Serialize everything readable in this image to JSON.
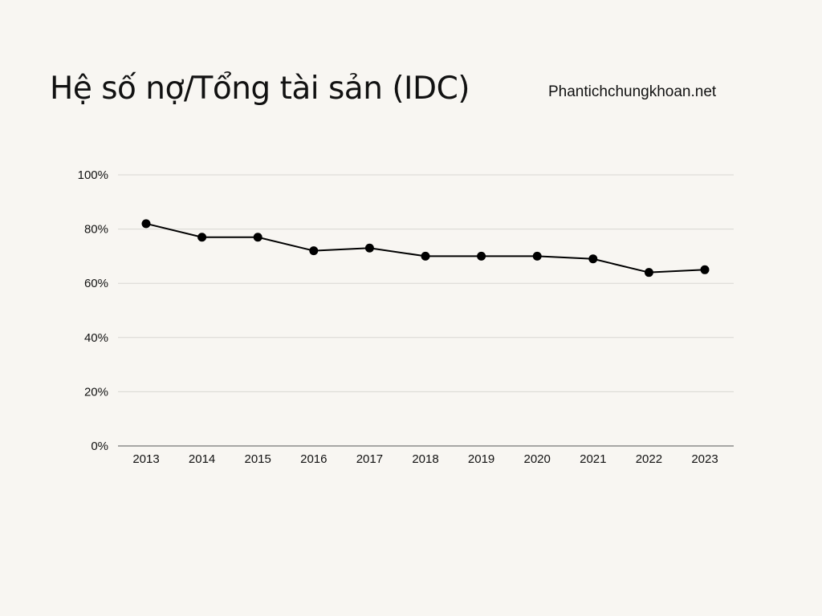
{
  "header": {
    "title": "Hệ số nợ/Tổng tài sản (IDC)",
    "source": "Phantichchungkhoan.net"
  },
  "colors": {
    "background": "#f8f6f2",
    "line": "#000000",
    "grid": "#d9d7d2",
    "axis": "#555555"
  },
  "chart_data": {
    "type": "line",
    "title": "Hệ số nợ/Tổng tài sản (IDC)",
    "xlabel": "",
    "ylabel": "",
    "categories": [
      "2013",
      "2014",
      "2015",
      "2016",
      "2017",
      "2018",
      "2019",
      "2020",
      "2021",
      "2022",
      "2023"
    ],
    "series": [
      {
        "values": [
          0.82,
          0.77,
          0.77,
          0.72,
          0.73,
          0.7,
          0.7,
          0.7,
          0.69,
          0.64,
          0.65
        ]
      }
    ],
    "ylim": [
      0,
      1
    ],
    "yticks": [
      0,
      0.2,
      0.4,
      0.6,
      0.8,
      1
    ],
    "ytick_labels": [
      "0%",
      "20%",
      "40%",
      "60%",
      "80%",
      "100%"
    ],
    "grid": "horizontal",
    "legend": "none",
    "markers": true
  }
}
